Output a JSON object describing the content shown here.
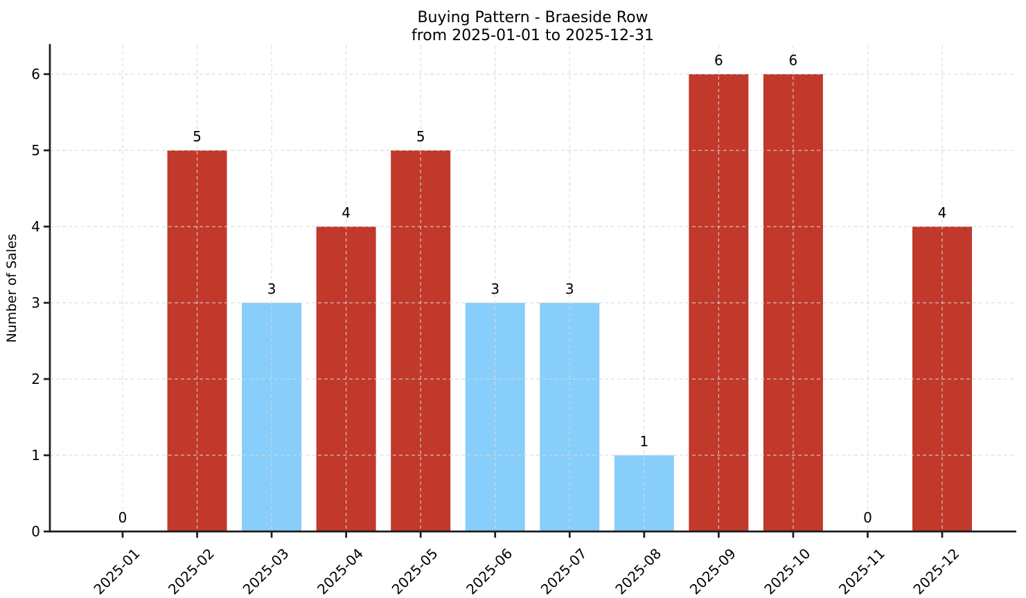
{
  "chart_data": {
    "type": "bar",
    "title": "Buying Pattern - Braeside Row",
    "subtitle": "from 2025-01-01 to 2025-12-31",
    "xlabel": "",
    "ylabel": "Number of Sales",
    "categories": [
      "2025-01",
      "2025-02",
      "2025-03",
      "2025-04",
      "2025-05",
      "2025-06",
      "2025-07",
      "2025-08",
      "2025-09",
      "2025-10",
      "2025-11",
      "2025-12"
    ],
    "values": [
      0,
      5,
      3,
      4,
      5,
      3,
      3,
      1,
      6,
      6,
      0,
      4
    ],
    "bar_colors": [
      "#87cefa",
      "#c0392b",
      "#87cefa",
      "#c0392b",
      "#c0392b",
      "#87cefa",
      "#87cefa",
      "#87cefa",
      "#c0392b",
      "#c0392b",
      "#87cefa",
      "#c0392b"
    ],
    "value_labels": [
      "0",
      "5",
      "3",
      "4",
      "5",
      "3",
      "3",
      "1",
      "6",
      "6",
      "0",
      "4"
    ],
    "yticks": [
      0,
      1,
      2,
      3,
      4,
      5,
      6
    ],
    "ylim": [
      0,
      6.38
    ],
    "grid": "both-dashed",
    "legend": "none",
    "show_value_labels": true,
    "colors": {
      "bar_high": "#c0392b",
      "bar_low": "#87cefa",
      "grid": "#d8d8d8",
      "axis": "#1c1c1c",
      "text": "#000000",
      "background": "#ffffff"
    }
  }
}
